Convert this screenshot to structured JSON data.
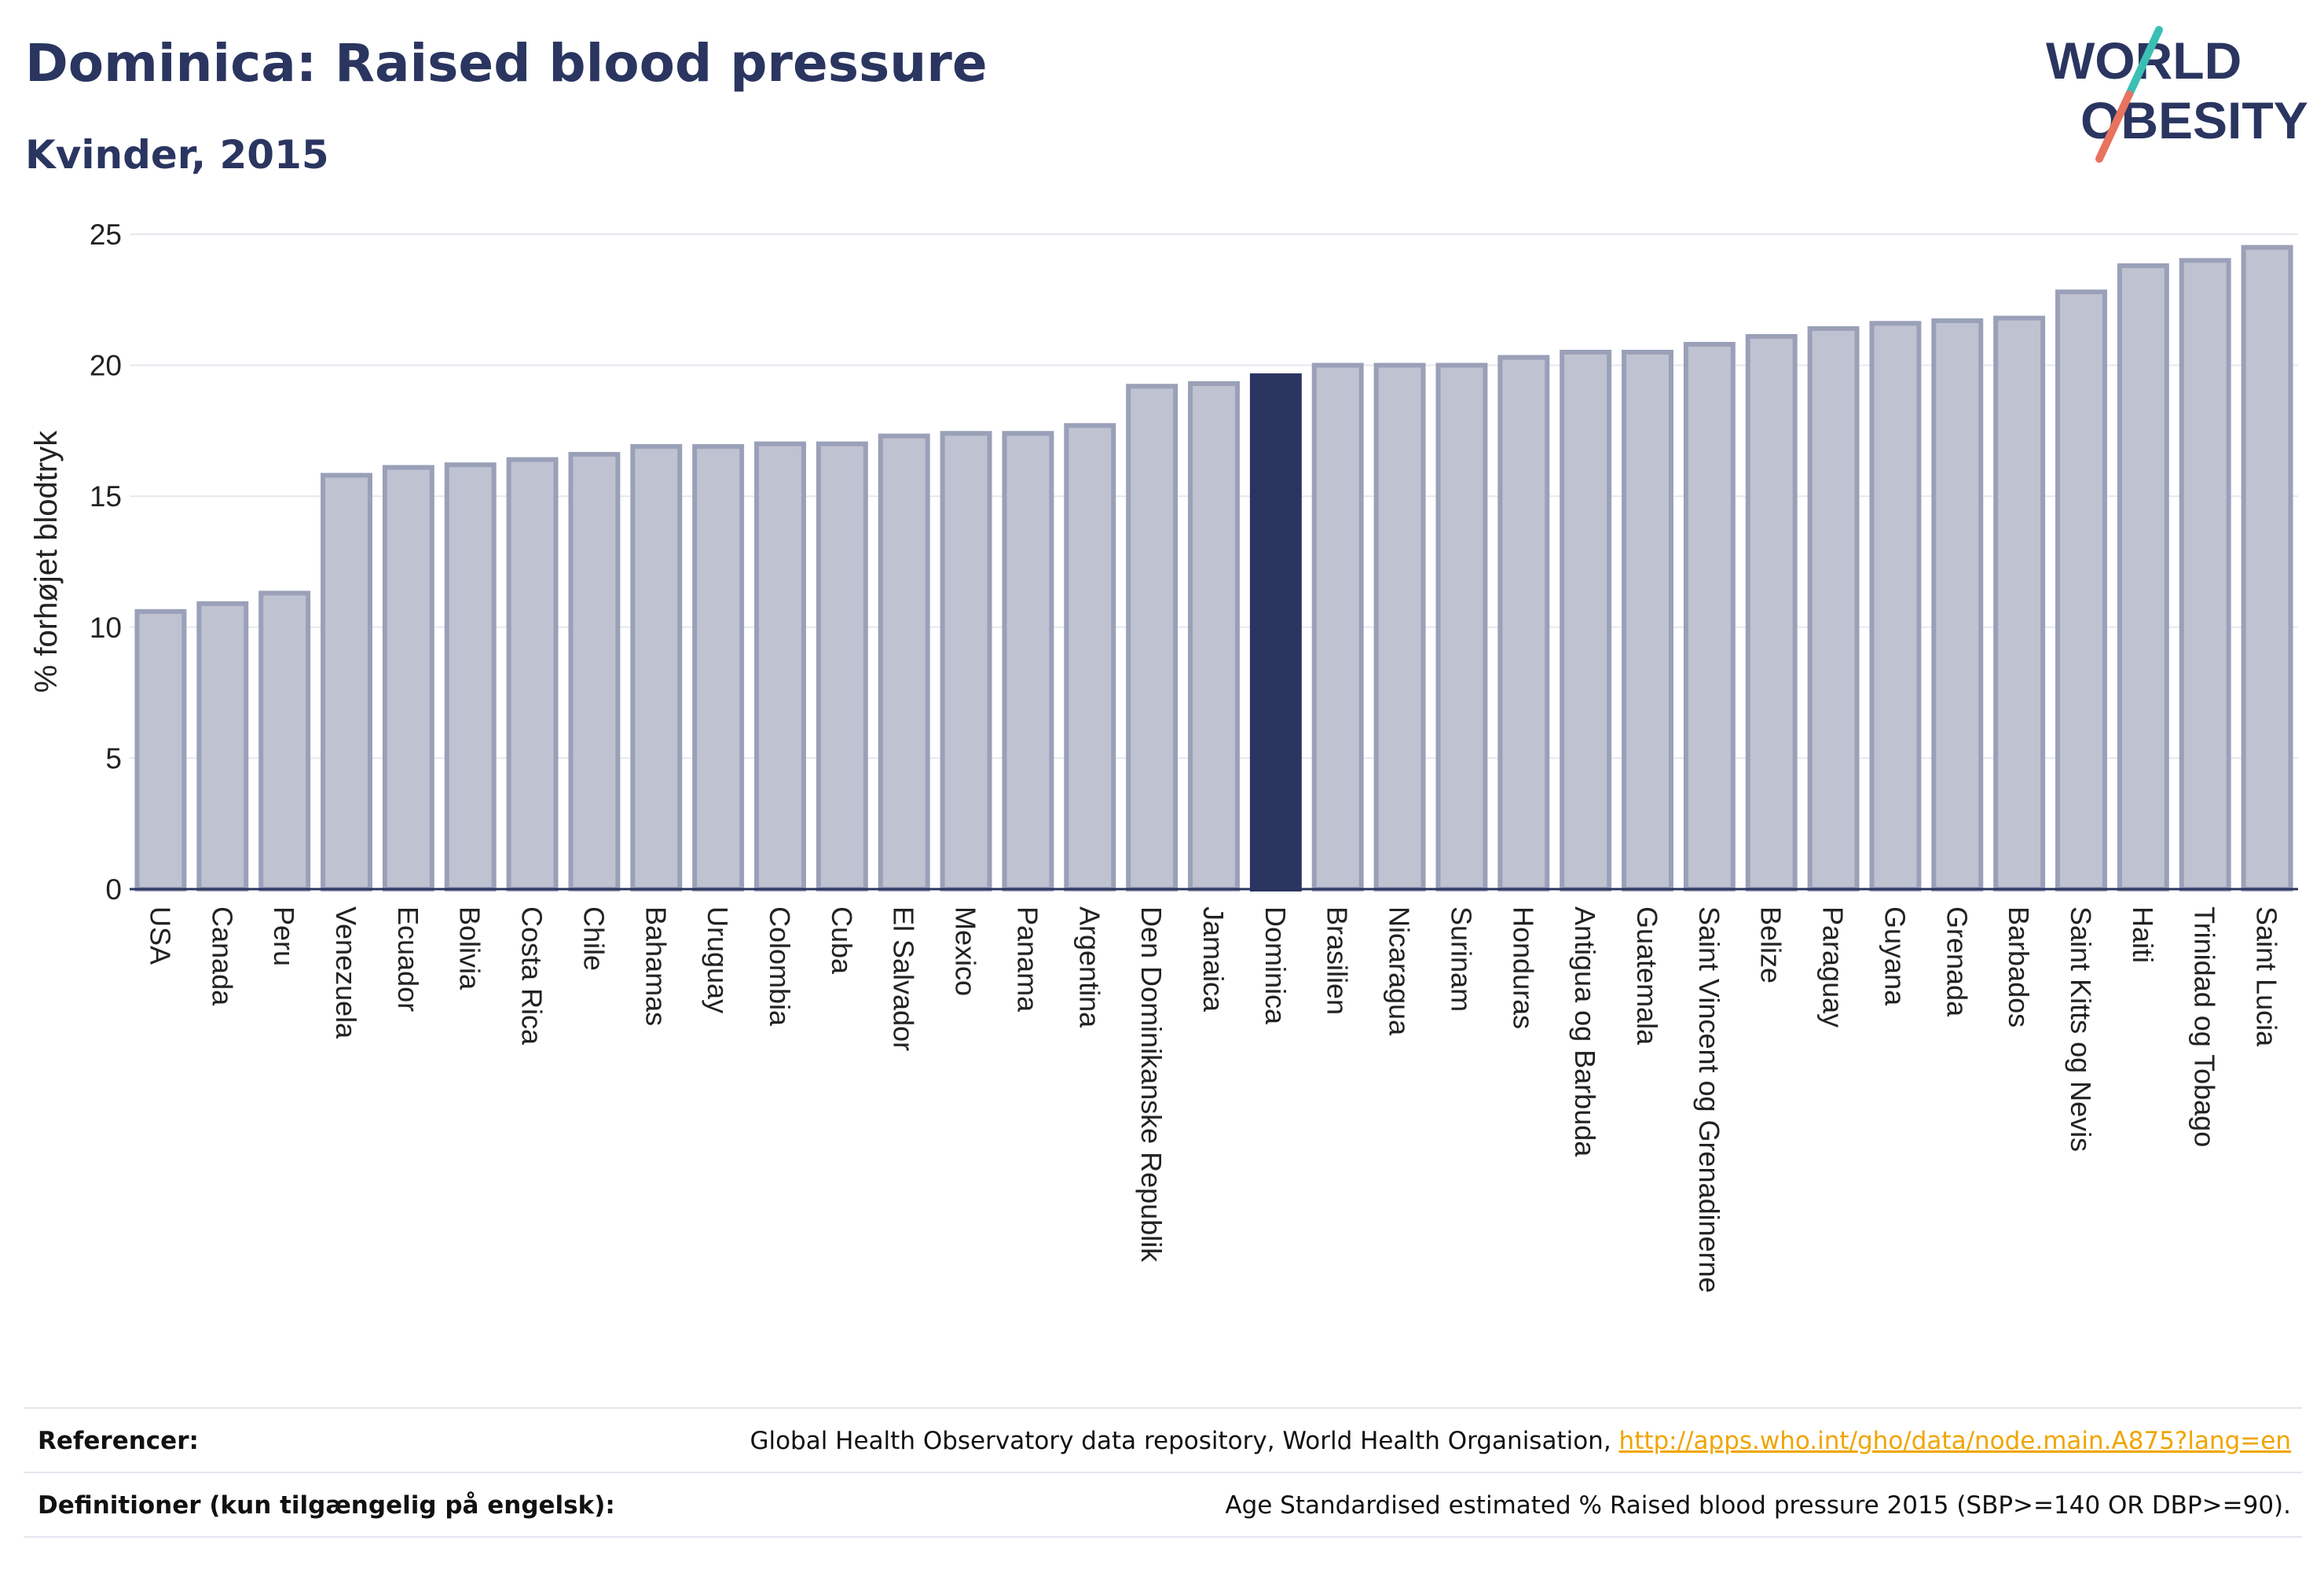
{
  "header": {
    "title": "Dominica: Raised blood pressure",
    "subtitle": "Kvinder, 2015"
  },
  "logo": {
    "line1": "WORLD",
    "line2": "OBESITY"
  },
  "colors": {
    "highlight": "#2a3560",
    "bar_fill": "#bfc2d0",
    "bar_stroke": "#9aa0b8",
    "logo_teal": "#3bbfb4",
    "logo_coral": "#e8735e",
    "link": "#f0a500"
  },
  "chart_data": {
    "type": "bar",
    "title": "Dominica: Raised blood pressure",
    "subtitle": "Kvinder, 2015",
    "ylabel": "% forhøjet blodtryk",
    "xlabel": "",
    "ylim": [
      0,
      25
    ],
    "yticks": [
      0,
      5,
      10,
      15,
      20,
      25
    ],
    "grid": true,
    "highlight": "Dominica",
    "categories": [
      "USA",
      "Canada",
      "Peru",
      "Venezuela",
      "Ecuador",
      "Bolivia",
      "Costa Rica",
      "Chile",
      "Bahamas",
      "Uruguay",
      "Colombia",
      "Cuba",
      "El Salvador",
      "Mexico",
      "Panama",
      "Argentina",
      "Den Dominikanske Republik",
      "Jamaica",
      "Dominica",
      "Brasilien",
      "Nicaragua",
      "Surinam",
      "Honduras",
      "Antigua og Barbuda",
      "Guatemala",
      "Saint Vincent og Grenadinerne",
      "Belize",
      "Paraguay",
      "Guyana",
      "Grenada",
      "Barbados",
      "Saint Kitts og Nevis",
      "Haiti",
      "Trinidad og Tobago",
      "Saint Lucia"
    ],
    "values": [
      10.6,
      10.9,
      11.3,
      15.8,
      16.1,
      16.2,
      16.4,
      16.6,
      16.9,
      16.9,
      17.0,
      17.0,
      17.3,
      17.4,
      17.4,
      17.7,
      19.2,
      19.3,
      19.6,
      20.0,
      20.0,
      20.0,
      20.3,
      20.5,
      20.5,
      20.8,
      21.1,
      21.4,
      21.6,
      21.7,
      21.8,
      22.8,
      23.8,
      24.0,
      24.5
    ]
  },
  "footer": {
    "references_label": "Referencer:",
    "references_text": "Global Health Observatory data repository, World Health Organisation, ",
    "references_link": "http://apps.who.int/gho/data/node.main.A875?lang=en",
    "definitions_label": "Definitioner (kun tilgængelig på engelsk):",
    "definitions_text": "Age Standardised estimated % Raised blood pressure 2015 (SBP>=140 OR DBP>=90)."
  }
}
